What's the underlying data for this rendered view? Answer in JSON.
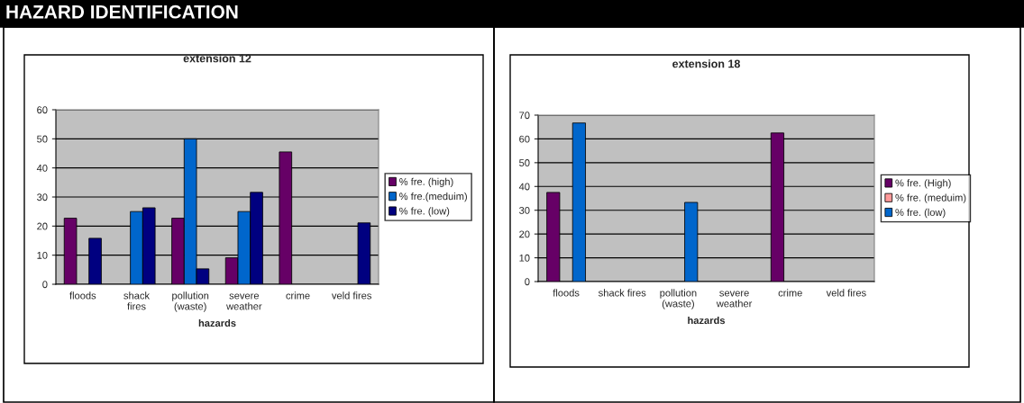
{
  "chart_data": [
    {
      "type": "bar",
      "title": "extension 12",
      "xlabel": "hazards",
      "annotations": [
        "HAZARD IDENTIFICATION"
      ],
      "categories": [
        "floods",
        "shack\nfires",
        "pollution\n(waste)",
        "severe\nweather",
        "crime",
        "veld fires"
      ],
      "series": [
        {
          "name": "% fre. (high)",
          "color": "#660066",
          "values": [
            22.7,
            null,
            22.7,
            9.1,
            45.5,
            null
          ]
        },
        {
          "name": "% fre.(meduim)",
          "color": "#0066cc",
          "values": [
            null,
            25,
            50,
            25,
            null,
            null
          ]
        },
        {
          "name": "% fre. (low)",
          "color": "#000080",
          "values": [
            15.8,
            26.3,
            5.3,
            31.6,
            null,
            21.1
          ]
        }
      ],
      "ylim": [
        0,
        60
      ],
      "yticks": [
        0,
        10,
        20,
        30,
        40,
        50,
        60
      ],
      "grid": "y",
      "legend": "right"
    },
    {
      "type": "bar",
      "title": "extension 18",
      "xlabel": "hazards",
      "categories": [
        "floods",
        "shack fires",
        "pollution\n(waste)",
        "severe\nweather",
        "crime",
        "veld fires"
      ],
      "series": [
        {
          "name": "% fre. (High)",
          "color": "#660066",
          "values": [
            37.5,
            null,
            null,
            null,
            62.5,
            null
          ]
        },
        {
          "name": "% fre. (meduim)",
          "color": "#ff9999",
          "values": [
            null,
            null,
            null,
            null,
            null,
            null
          ]
        },
        {
          "name": "% fre. (low)",
          "color": "#0066cc",
          "values": [
            66.7,
            null,
            33.3,
            null,
            null,
            null
          ]
        }
      ],
      "ylim": [
        0,
        70
      ],
      "yticks": [
        0,
        10,
        20,
        30,
        40,
        50,
        60,
        70
      ],
      "grid": "y",
      "legend": "right"
    }
  ]
}
